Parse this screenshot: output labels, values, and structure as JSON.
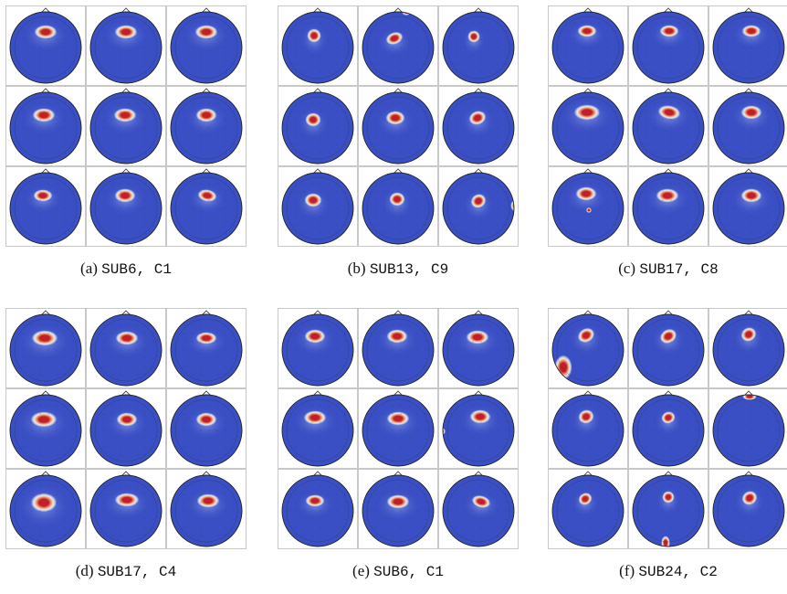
{
  "figure": {
    "colors": {
      "background_blue": "#3a4fc4",
      "light_blue": "#9fb2ec",
      "pale": "#f1ead9",
      "orange": "#ef9b74",
      "red": "#c21f27"
    },
    "panels": [
      {
        "label": "(a)",
        "code": "SUB6, C1"
      },
      {
        "label": "(b)",
        "code": "SUB13, C9"
      },
      {
        "label": "(c)",
        "code": "SUB17, C8"
      },
      {
        "label": "(d)",
        "code": "SUB17, C4"
      },
      {
        "label": "(e)",
        "code": "SUB6, C1"
      },
      {
        "label": "(f)",
        "code": "SUB24, C2"
      }
    ]
  }
}
